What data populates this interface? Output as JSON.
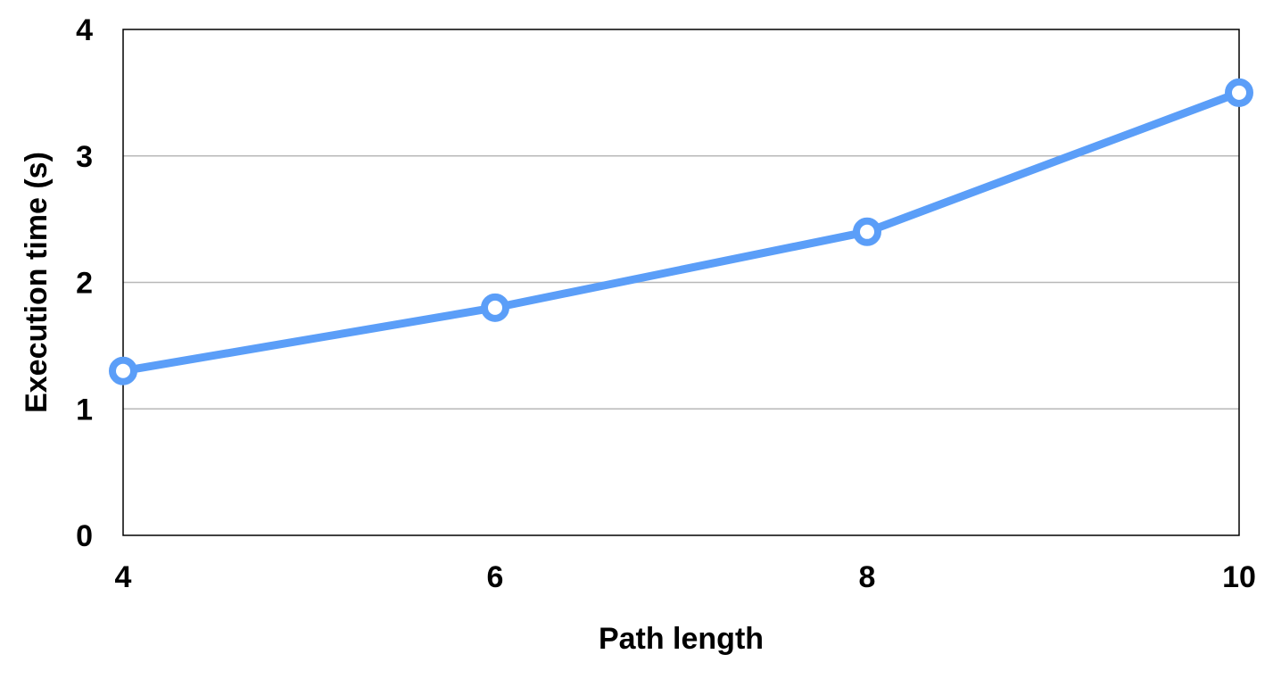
{
  "chart_data": {
    "type": "line",
    "title": "",
    "xlabel": "Path length",
    "ylabel": "Execution time (s)",
    "x": [
      4,
      6,
      8,
      10
    ],
    "series": [
      {
        "values": [
          1.3,
          1.8,
          2.4,
          3.5
        ],
        "color": "#5b9ef8"
      }
    ],
    "xlim": [
      4,
      10
    ],
    "ylim": [
      0,
      4
    ],
    "x_ticks": [
      4,
      6,
      8,
      10
    ],
    "y_ticks": [
      0,
      1,
      2,
      3,
      4
    ],
    "x_tick_labels": [
      "4",
      "6",
      "8",
      "10"
    ],
    "y_tick_labels": [
      "0",
      "1",
      "2",
      "3",
      "4"
    ],
    "grid": "horizontal",
    "gridline_color": "#b8b8b8",
    "marker": "hollow-circle",
    "legend": "none"
  }
}
